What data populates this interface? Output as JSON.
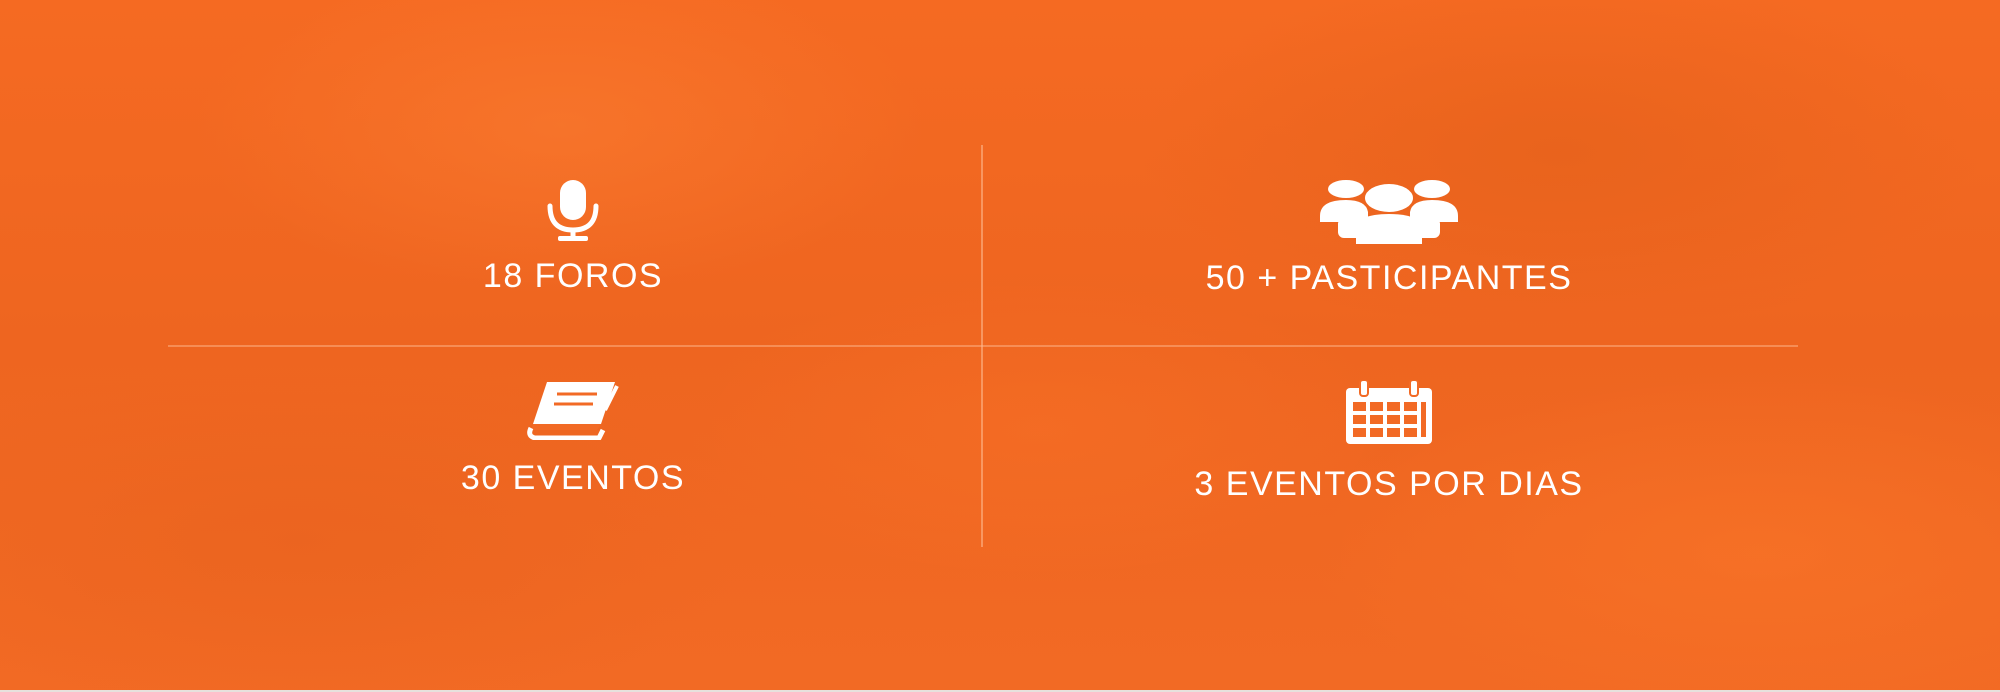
{
  "stats": {
    "items": [
      {
        "icon": "microphone-icon",
        "label": "18 FOROS"
      },
      {
        "icon": "users-group-icon",
        "label": "50 + PASTICIPANTES"
      },
      {
        "icon": "book-icon",
        "label": "30 EVENTOS"
      },
      {
        "icon": "calendar-icon",
        "label": "3 EVENTOS POR DIAS"
      }
    ]
  },
  "colors": {
    "background": "#f26a25",
    "text": "#ffffff",
    "divider": "#ffbe96"
  }
}
